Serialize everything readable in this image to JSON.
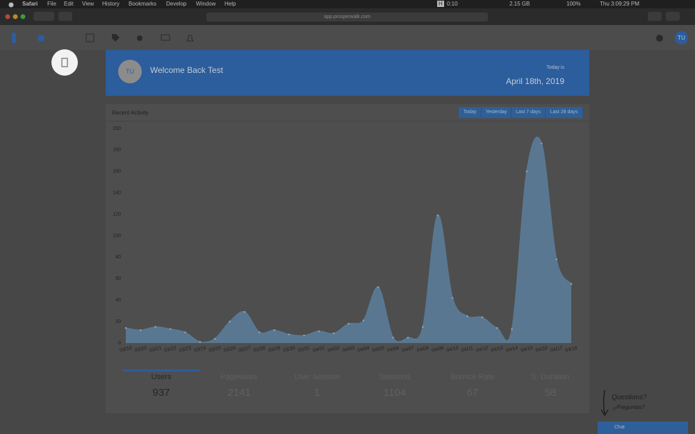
{
  "menu_bar": {
    "app": "Safari",
    "items": [
      "File",
      "Edit",
      "View",
      "History",
      "Bookmarks",
      "Develop",
      "Window",
      "Help"
    ],
    "status": [
      "H",
      "0:10",
      "2.15 GB",
      "100%"
    ],
    "clock": "Thu 3:09:29 PM"
  },
  "browser": {
    "url": "app.prosperwalk.com"
  },
  "user": {
    "initials": "TU"
  },
  "welcome": {
    "initials": "TU",
    "greeting": "Welcome Back Test",
    "today_label": "Today is",
    "date": "April 18th, 2019"
  },
  "activity": {
    "title": "Recent Activity",
    "ranges": [
      "Today",
      "Yesterday",
      "Last 7 days",
      "Last 28 days"
    ]
  },
  "chart_data": {
    "type": "area",
    "color": "#5a7993",
    "categories": [
      "03/19",
      "03/20",
      "03/21",
      "03/22",
      "03/23",
      "03/24",
      "03/25",
      "03/26",
      "03/27",
      "03/28",
      "03/29",
      "03/30",
      "03/31",
      "04/01",
      "04/02",
      "04/03",
      "04/04",
      "04/05",
      "04/06",
      "04/07",
      "04/08",
      "04/09",
      "04/10",
      "04/11",
      "04/12",
      "04/13",
      "04/14",
      "04/15",
      "04/16",
      "04/17",
      "04/18"
    ],
    "values": [
      14,
      12,
      15,
      13,
      10,
      1,
      4,
      20,
      29,
      10,
      12,
      8,
      7,
      11,
      9,
      18,
      21,
      52,
      5,
      5,
      15,
      119,
      42,
      25,
      24,
      14,
      13,
      160,
      186,
      78,
      55
    ],
    "ylim": [
      0,
      200
    ],
    "yticks": [
      0,
      20,
      40,
      60,
      80,
      100,
      120,
      140,
      160,
      180,
      200
    ]
  },
  "stats": [
    {
      "label": "Users",
      "value": 937
    },
    {
      "label": "Pageviews",
      "value": 2141
    },
    {
      "label": "User Session",
      "value": 1
    },
    {
      "label": "Sessions",
      "value": 1104
    },
    {
      "label": "Bounce Rate",
      "value": 67
    },
    {
      "label": "S. Duration",
      "value": 58
    }
  ],
  "help": {
    "question": "Questions?",
    "question_es": "¿Preguntas?",
    "chat": "Chat"
  }
}
